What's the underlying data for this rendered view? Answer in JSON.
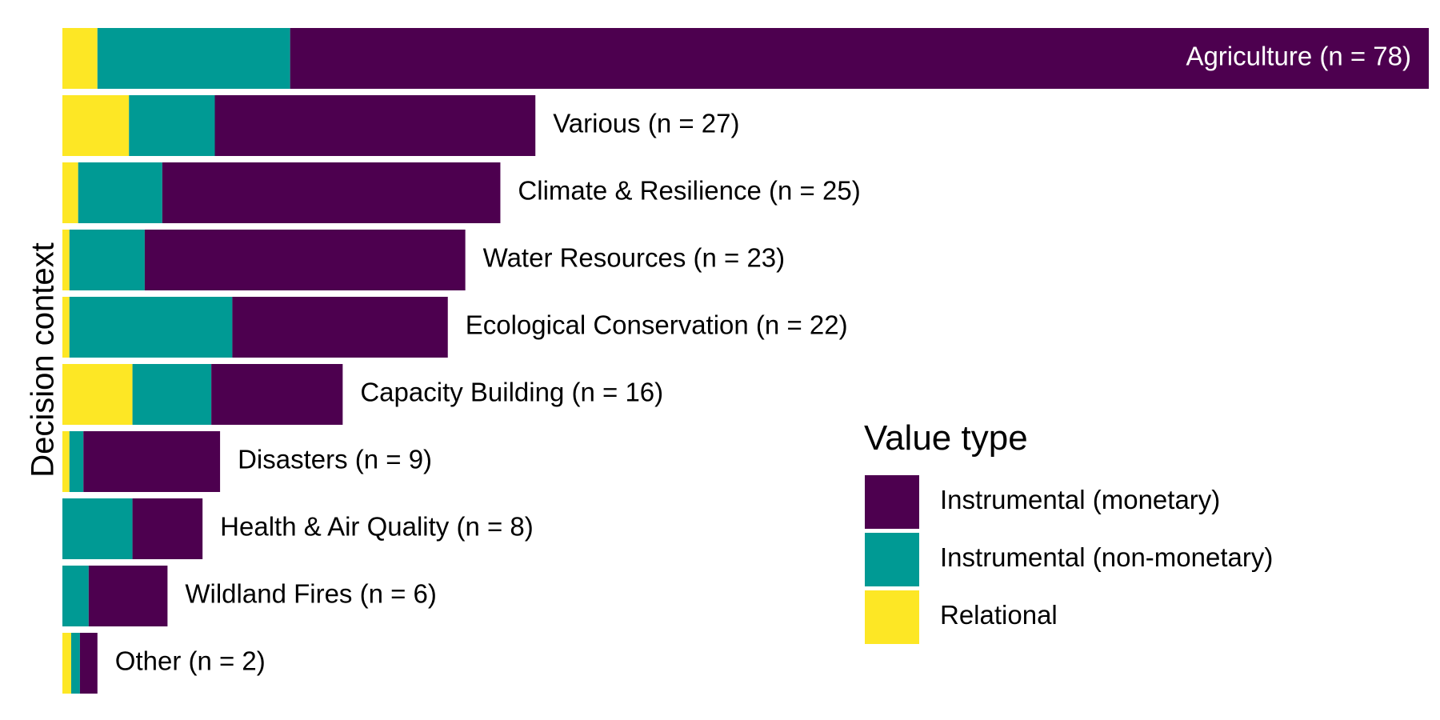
{
  "chart_data": {
    "type": "bar",
    "orientation": "horizontal",
    "stacked": true,
    "ylabel": "Decision context",
    "xlabel": "",
    "xlim": [
      0,
      78
    ],
    "grid": false,
    "legend_position": "right",
    "categories": [
      "Agriculture (n = 78)",
      "Various (n = 27)",
      "Climate & Resilience (n = 25)",
      "Water Resources (n = 23)",
      "Ecological Conservation (n = 22)",
      "Capacity Building (n = 16)",
      "Disasters (n = 9)",
      "Health & Air Quality (n = 8)",
      "Wildland Fires (n = 6)",
      "Other (n = 2)"
    ],
    "series": [
      {
        "name": "Relational",
        "color": "#FDE725",
        "values": [
          2,
          3.8,
          0.9,
          0.4,
          0.4,
          4,
          0.4,
          0,
          0,
          0.5
        ]
      },
      {
        "name": "Instrumental (non-monetary)",
        "color": "#009A94",
        "values": [
          11,
          4.9,
          4.8,
          4.3,
          9.3,
          4.5,
          0.8,
          4,
          1.5,
          0.5
        ]
      },
      {
        "name": "Instrumental (monetary)",
        "color": "#4D004F",
        "values": [
          65,
          18.3,
          19.3,
          18.3,
          12.3,
          7.5,
          7.8,
          4,
          4.5,
          1
        ]
      }
    ]
  },
  "legend": {
    "title": "Value type",
    "items": [
      {
        "label": "Instrumental (monetary)",
        "color": "#4D004F"
      },
      {
        "label": "Instrumental (non-monetary)",
        "color": "#009A94"
      },
      {
        "label": "Relational",
        "color": "#FDE725"
      }
    ]
  }
}
